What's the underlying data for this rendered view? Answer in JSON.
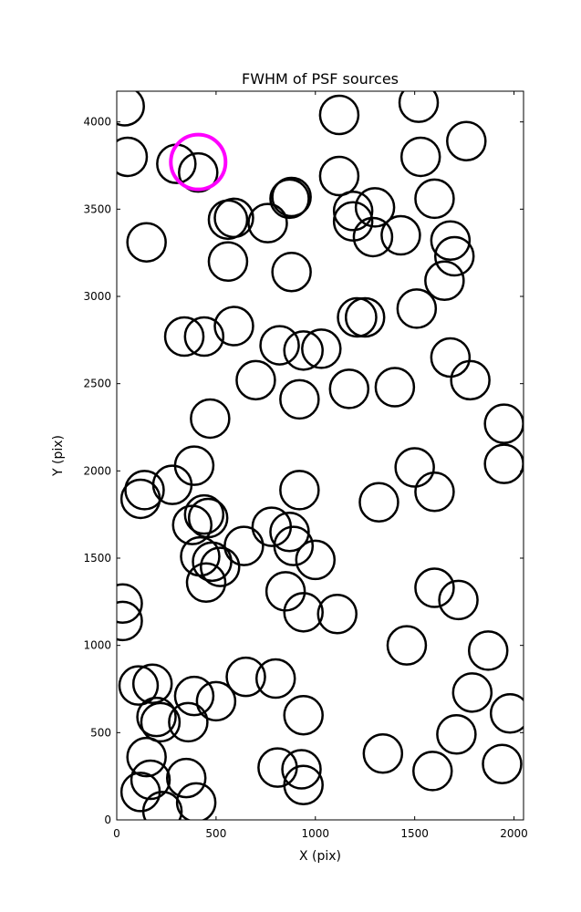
{
  "chart_data": {
    "type": "scatter",
    "title": "FWHM of PSF sources",
    "xlabel": "X (pix)",
    "ylabel": "Y (pix)",
    "xlim": [
      0,
      2048
    ],
    "ylim": [
      0,
      4176
    ],
    "xticks": [
      0,
      500,
      1000,
      1500,
      2000
    ],
    "yticks": [
      0,
      500,
      1000,
      1500,
      2000,
      2500,
      3000,
      3500,
      4000
    ],
    "grid": false,
    "legend": "none",
    "marker": "open-circle",
    "colors": {
      "source": "#000000",
      "highlight": "#ff00ff"
    },
    "series": [
      {
        "style": "source",
        "points": [
          [
            40,
            4090
          ],
          [
            55,
            3800
          ],
          [
            300,
            3760
          ],
          [
            410,
            3710
          ],
          [
            150,
            3310
          ],
          [
            590,
            3450
          ],
          [
            560,
            3440
          ],
          [
            760,
            3420
          ],
          [
            870,
            3560
          ],
          [
            880,
            3570
          ],
          [
            1120,
            3690
          ],
          [
            1120,
            4040
          ],
          [
            1190,
            3430
          ],
          [
            1190,
            3490
          ],
          [
            1300,
            3510
          ],
          [
            1290,
            3340
          ],
          [
            1430,
            3350
          ],
          [
            1520,
            4110
          ],
          [
            1530,
            3800
          ],
          [
            1600,
            3560
          ],
          [
            1760,
            3890
          ],
          [
            1680,
            3320
          ],
          [
            1700,
            3230
          ],
          [
            1650,
            3090
          ],
          [
            560,
            3200
          ],
          [
            880,
            3140
          ],
          [
            1510,
            2930
          ],
          [
            1210,
            2880
          ],
          [
            1250,
            2880
          ],
          [
            340,
            2770
          ],
          [
            440,
            2770
          ],
          [
            590,
            2830
          ],
          [
            820,
            2720
          ],
          [
            940,
            2690
          ],
          [
            1030,
            2700
          ],
          [
            700,
            2520
          ],
          [
            920,
            2410
          ],
          [
            1170,
            2470
          ],
          [
            1400,
            2480
          ],
          [
            1680,
            2650
          ],
          [
            1780,
            2520
          ],
          [
            470,
            2300
          ],
          [
            1950,
            2270
          ],
          [
            1950,
            2040
          ],
          [
            390,
            2030
          ],
          [
            280,
            1920
          ],
          [
            140,
            1890
          ],
          [
            120,
            1840
          ],
          [
            920,
            1890
          ],
          [
            1500,
            2020
          ],
          [
            1600,
            1880
          ],
          [
            1320,
            1820
          ],
          [
            440,
            1750
          ],
          [
            460,
            1730
          ],
          [
            380,
            1690
          ],
          [
            780,
            1680
          ],
          [
            870,
            1650
          ],
          [
            640,
            1570
          ],
          [
            890,
            1570
          ],
          [
            1000,
            1490
          ],
          [
            420,
            1510
          ],
          [
            480,
            1480
          ],
          [
            520,
            1450
          ],
          [
            450,
            1360
          ],
          [
            850,
            1310
          ],
          [
            940,
            1190
          ],
          [
            1110,
            1180
          ],
          [
            30,
            1240
          ],
          [
            30,
            1140
          ],
          [
            1600,
            1330
          ],
          [
            1720,
            1260
          ],
          [
            1460,
            1000
          ],
          [
            1870,
            970
          ],
          [
            110,
            770
          ],
          [
            180,
            780
          ],
          [
            390,
            710
          ],
          [
            500,
            680
          ],
          [
            650,
            820
          ],
          [
            800,
            810
          ],
          [
            1790,
            730
          ],
          [
            200,
            590
          ],
          [
            220,
            560
          ],
          [
            360,
            560
          ],
          [
            940,
            600
          ],
          [
            1980,
            610
          ],
          [
            1710,
            490
          ],
          [
            150,
            360
          ],
          [
            170,
            230
          ],
          [
            350,
            240
          ],
          [
            810,
            300
          ],
          [
            930,
            290
          ],
          [
            940,
            200
          ],
          [
            1340,
            380
          ],
          [
            1590,
            280
          ],
          [
            1940,
            320
          ],
          [
            120,
            160
          ],
          [
            230,
            50
          ],
          [
            400,
            100
          ]
        ]
      },
      {
        "style": "highlight",
        "points": [
          [
            410,
            3770
          ]
        ]
      }
    ]
  }
}
